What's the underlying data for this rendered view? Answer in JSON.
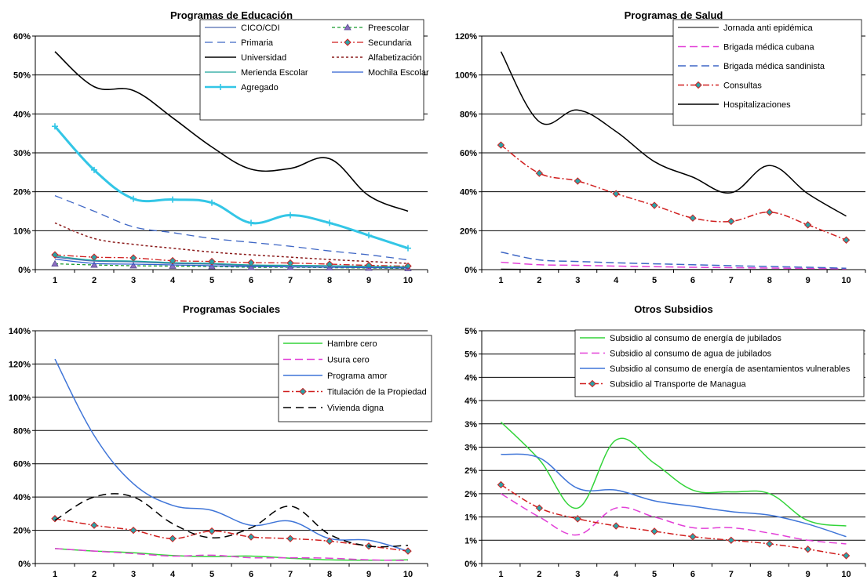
{
  "chart_data": [
    {
      "type": "line",
      "title": "Programas de Educación",
      "xlabel": "",
      "ylabel": "",
      "x": [
        1,
        2,
        3,
        4,
        5,
        6,
        7,
        8,
        9,
        10
      ],
      "ylim": [
        0,
        60
      ],
      "yticks": [
        "0%",
        "10%",
        "20%",
        "30%",
        "40%",
        "50%",
        "60%"
      ],
      "grid": true,
      "legend": "top-right, two columns",
      "series": [
        {
          "name": "CICO/CDI",
          "color": "#4f6ab0",
          "dash": "",
          "marker": "",
          "width": 1.3,
          "values": [
            3.2,
            2.2,
            2.0,
            1.6,
            1.4,
            1.0,
            1.0,
            0.9,
            0.7,
            0.6
          ]
        },
        {
          "name": "Preescolar",
          "color": "#169a2c",
          "dash": "4,3",
          "marker": "triangle",
          "width": 1.3,
          "values": [
            1.5,
            1.2,
            1.0,
            0.9,
            0.8,
            0.6,
            0.6,
            0.5,
            0.4,
            0.3
          ]
        },
        {
          "name": "Primaria",
          "color": "#3f67c5",
          "dash": "10,6",
          "marker": "",
          "width": 1.3,
          "values": [
            19.0,
            15.0,
            11.0,
            9.5,
            8.0,
            7.0,
            6.0,
            4.8,
            3.8,
            2.5
          ]
        },
        {
          "name": "Secundaria",
          "color": "#d01f1f",
          "dash": "8,3,2,3",
          "marker": "diamond",
          "width": 1.3,
          "values": [
            3.8,
            3.2,
            3.0,
            2.3,
            2.1,
            1.8,
            1.7,
            1.4,
            1.1,
            0.9
          ]
        },
        {
          "name": "Universidad",
          "color": "#000000",
          "dash": "",
          "marker": "",
          "width": 1.6,
          "values": [
            56.0,
            47.0,
            46.0,
            39.0,
            31.5,
            25.8,
            26.0,
            28.5,
            19.0,
            15.0
          ]
        },
        {
          "name": "Alfabetización",
          "color": "#8b1a1a",
          "dash": "3,3",
          "marker": "",
          "width": 1.5,
          "values": [
            12.0,
            8.0,
            6.5,
            5.5,
            4.5,
            3.8,
            3.2,
            2.6,
            2.1,
            1.6
          ]
        },
        {
          "name": "Merienda Escolar",
          "color": "#1aa39a",
          "dash": "",
          "marker": "",
          "width": 1.3,
          "values": [
            3.5,
            2.4,
            2.2,
            1.8,
            1.6,
            1.2,
            1.1,
            1.0,
            0.8,
            0.7
          ]
        },
        {
          "name": "Mochila Escolar",
          "color": "#2f5fd0",
          "dash": "",
          "marker": "",
          "width": 1.3,
          "values": [
            2.7,
            1.6,
            1.4,
            1.2,
            1.0,
            0.8,
            0.7,
            0.6,
            0.5,
            0.4
          ]
        },
        {
          "name": "Agregado",
          "color": "#33c6e6",
          "dash": "",
          "marker": "plus",
          "width": 3,
          "values": [
            36.8,
            25.6,
            18.2,
            18.0,
            17.2,
            12.0,
            14.0,
            12.0,
            8.8,
            5.5
          ]
        }
      ]
    },
    {
      "type": "line",
      "title": "Programas de Salud",
      "xlabel": "",
      "ylabel": "",
      "x": [
        1,
        2,
        3,
        4,
        5,
        6,
        7,
        8,
        9,
        10
      ],
      "ylim": [
        0,
        120
      ],
      "yticks": [
        "0%",
        "20%",
        "40%",
        "60%",
        "80%",
        "100%",
        "120%"
      ],
      "grid": true,
      "legend": "top-right",
      "series": [
        {
          "name": "Jornada anti epidémica",
          "color": "#000000",
          "dash": "",
          "marker": "",
          "width": 1,
          "values": [
            0.3,
            0.2,
            0.2,
            0.2,
            0.1,
            0.1,
            0.1,
            0.1,
            0.1,
            0.1
          ]
        },
        {
          "name": "Brigada médica cubana",
          "color": "#e23fd7",
          "dash": "10,5",
          "marker": "",
          "width": 1.5,
          "values": [
            3.8,
            2.5,
            2.2,
            1.8,
            1.5,
            1.2,
            1.0,
            0.8,
            0.6,
            0.4
          ]
        },
        {
          "name": "Brigada médica sandinista",
          "color": "#3f67c5",
          "dash": "10,5",
          "marker": "",
          "width": 1.5,
          "values": [
            9.0,
            5.0,
            4.2,
            3.5,
            3.0,
            2.5,
            2.0,
            1.6,
            1.2,
            0.7
          ]
        },
        {
          "name": "Consultas",
          "color": "#d01f1f",
          "dash": "8,3,2,3",
          "marker": "diamond",
          "width": 1.5,
          "values": [
            64,
            49.5,
            45.5,
            39,
            33,
            26.5,
            24.8,
            29.5,
            23,
            15.2
          ]
        },
        {
          "name": "Hospitalizaciones",
          "color": "#000000",
          "dash": "",
          "marker": "",
          "width": 1.5,
          "values": [
            112,
            76,
            82,
            71,
            55.5,
            47.5,
            39.5,
            53.5,
            39,
            27.5
          ]
        }
      ]
    },
    {
      "type": "line",
      "title": "Programas Sociales",
      "xlabel": "",
      "ylabel": "",
      "x": [
        1,
        2,
        3,
        4,
        5,
        6,
        7,
        8,
        9,
        10
      ],
      "ylim": [
        0,
        140
      ],
      "yticks": [
        "0%",
        "20%",
        "40%",
        "60%",
        "80%",
        "100%",
        "120%",
        "140%"
      ],
      "grid": true,
      "legend": "top-right",
      "series": [
        {
          "name": "Hambre cero",
          "color": "#33d43a",
          "dash": "",
          "marker": "",
          "width": 1.5,
          "values": [
            9,
            7.5,
            6.5,
            4.8,
            4.2,
            4.5,
            3.2,
            2.2,
            2.0,
            2.2
          ]
        },
        {
          "name": "Usura cero",
          "color": "#e23fd7",
          "dash": "10,5",
          "marker": "",
          "width": 1.5,
          "values": [
            9,
            7.5,
            6,
            4.5,
            5,
            3.5,
            3.5,
            3.2,
            2.2,
            1.8
          ]
        },
        {
          "name": "Programa amor",
          "color": "#3f75d8",
          "dash": "",
          "marker": "",
          "width": 1.5,
          "values": [
            123,
            77,
            48,
            35,
            32,
            23,
            25.5,
            15,
            14,
            7.5
          ]
        },
        {
          "name": "Titulación de la Propiedad",
          "color": "#d01f1f",
          "dash": "8,3,2,3",
          "marker": "diamond",
          "width": 1.5,
          "values": [
            27,
            23,
            20,
            15,
            19.5,
            16,
            15,
            13.5,
            10.5,
            7.5
          ]
        },
        {
          "name": "Vivienda digna",
          "color": "#000000",
          "dash": "10,6",
          "marker": "",
          "width": 1.5,
          "values": [
            26,
            40,
            40,
            24,
            15.5,
            21.5,
            34.5,
            17.5,
            10.5,
            11
          ]
        }
      ]
    },
    {
      "type": "line",
      "title": "Otros Subsidios",
      "xlabel": "",
      "ylabel": "",
      "x": [
        1,
        2,
        3,
        4,
        5,
        6,
        7,
        8,
        9,
        10
      ],
      "ylim": [
        0,
        6.5
      ],
      "yticks": [
        "0%",
        "1%",
        "1%",
        "2%",
        "2%",
        "3%",
        "3%",
        "4%",
        "4%",
        "5%",
        "5%"
      ],
      "grid": true,
      "legend": "top-right",
      "series": [
        {
          "name": "Subsidio al consumo de energía de jubilados",
          "color": "#33d43a",
          "dash": "",
          "marker": "",
          "width": 1.5,
          "values": [
            3.95,
            2.9,
            1.55,
            3.45,
            2.8,
            2.05,
            2.0,
            1.95,
            1.2,
            1.05
          ]
        },
        {
          "name": "Subsidio al consumo de agua de jubilados",
          "color": "#e23fd7",
          "dash": "10,5",
          "marker": "",
          "width": 1.5,
          "values": [
            1.95,
            1.3,
            0.8,
            1.55,
            1.3,
            1.0,
            1.0,
            0.85,
            0.65,
            0.55
          ]
        },
        {
          "name": "Subsidio al consumo de energía de asentamientos vulnerables",
          "color": "#3f75d8",
          "dash": "",
          "marker": "",
          "width": 1.5,
          "values": [
            3.05,
            2.95,
            2.1,
            2.05,
            1.75,
            1.6,
            1.45,
            1.35,
            1.1,
            0.75
          ]
        },
        {
          "name": "Subsidio al Transporte de Managua",
          "color": "#d01f1f",
          "dash": "8,3,2,3",
          "marker": "diamond",
          "width": 1.5,
          "values": [
            2.2,
            1.55,
            1.25,
            1.05,
            0.9,
            0.75,
            0.65,
            0.55,
            0.4,
            0.22
          ]
        }
      ]
    }
  ]
}
